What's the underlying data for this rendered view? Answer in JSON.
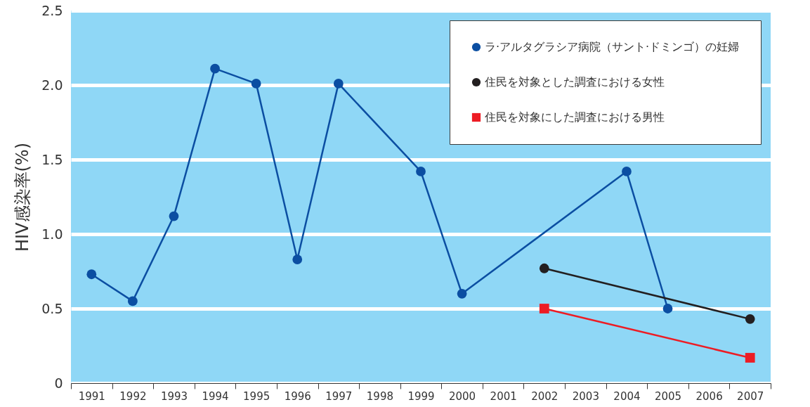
{
  "chart_data": {
    "type": "line",
    "ylabel": "HIV感染率(%)",
    "xlim": [
      1990.5,
      2007.5
    ],
    "xticks": [
      {
        "value": 1990.5,
        "label": null
      },
      1991,
      {
        "value": 1991.5,
        "label": null
      },
      1992,
      {
        "value": 1992.5,
        "label": null
      },
      1993,
      {
        "value": 1993.5,
        "label": null
      },
      1994,
      {
        "value": 1994.5,
        "label": null
      },
      1995,
      {
        "value": 1995.5,
        "label": null
      },
      1996,
      {
        "value": 1996.5,
        "label": null
      },
      1997,
      {
        "value": 1997.5,
        "label": null
      },
      1998,
      {
        "value": 1998.5,
        "label": null
      },
      1999,
      {
        "value": 1999.5,
        "label": null
      },
      2000,
      {
        "value": 2000.5,
        "label": null
      },
      2001,
      {
        "value": 2001.5,
        "label": null
      },
      2002,
      {
        "value": 2002.5,
        "label": null
      },
      2003,
      {
        "value": 2003.5,
        "label": null
      },
      2004,
      {
        "value": 2004.5,
        "label": null
      },
      2005,
      {
        "value": 2005.5,
        "label": null
      },
      2006,
      {
        "value": 2006.5,
        "label": null
      },
      2007,
      {
        "value": 2007.5,
        "label": null
      }
    ],
    "ylim": [
      0,
      2.5
    ],
    "yticks": [
      0,
      0.5,
      {
        "value": 1,
        "label": "1.0"
      },
      1.5,
      {
        "value": 2,
        "label": "2.0"
      },
      2.5
    ],
    "grid": "y",
    "legend": "top right",
    "series": [
      {
        "name": "ラ·アルタグラシア病院（サント·ドミンゴ）の妊婦",
        "color": "#0b4ea2",
        "marker": "circle",
        "x": [
          1991,
          1992,
          1993,
          1994,
          1995,
          1996,
          1997,
          1999,
          2000,
          2004,
          2005
        ],
        "values": [
          0.73,
          0.55,
          1.12,
          2.11,
          2.01,
          0.83,
          2.01,
          1.42,
          0.6,
          1.42,
          0.5
        ]
      },
      {
        "name": "住民を対象とした調査における女性",
        "color": "#231f20",
        "marker": "circle",
        "x": [
          2002,
          2007
        ],
        "values": [
          0.77,
          0.43
        ]
      },
      {
        "name": "住民を対象にした調査における男性",
        "color": "#ed1c24",
        "marker": "square",
        "x": [
          2002,
          2007
        ],
        "values": [
          0.5,
          0.17
        ]
      }
    ]
  }
}
